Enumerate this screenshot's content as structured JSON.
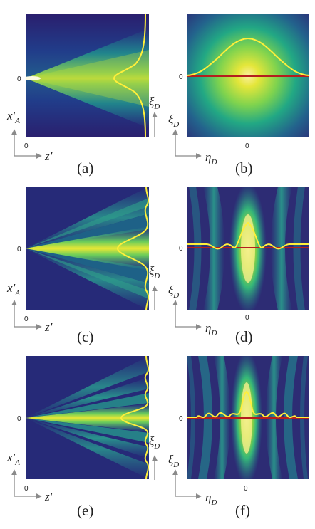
{
  "panels": [
    {
      "id": "a",
      "caption": "(a)",
      "kind": "propagation",
      "fringes": 1,
      "origin_tick": "0",
      "axis_tick": "0",
      "h_axis_label": "z",
      "h_axis_prime": "′",
      "v_axis_label": "x",
      "v_axis_sub": "A",
      "v_axis_prime": "′",
      "side_label": "ξ",
      "side_label_sub": "D"
    },
    {
      "id": "b",
      "caption": "(b)",
      "kind": "detector",
      "fringes": 1,
      "origin_tick": "0",
      "axis_tick": "0",
      "h_axis_label": "η",
      "h_axis_sub": "D",
      "v_axis_label": "ξ",
      "v_axis_sub": "D"
    },
    {
      "id": "c",
      "caption": "(c)",
      "kind": "propagation",
      "fringes": 2,
      "origin_tick": "0",
      "axis_tick": "0",
      "h_axis_label": "z",
      "h_axis_prime": "′",
      "v_axis_label": "x",
      "v_axis_sub": "A",
      "v_axis_prime": "′",
      "side_label": "ξ",
      "side_label_sub": "D"
    },
    {
      "id": "d",
      "caption": "(d)",
      "kind": "detector",
      "fringes": 2,
      "origin_tick": "0",
      "axis_tick": "0",
      "h_axis_label": "η",
      "h_axis_sub": "D",
      "v_axis_label": "ξ",
      "v_axis_sub": "D"
    },
    {
      "id": "e",
      "caption": "(e)",
      "kind": "propagation",
      "fringes": 3,
      "origin_tick": "0",
      "axis_tick": "0",
      "h_axis_label": "z",
      "h_axis_prime": "′",
      "v_axis_label": "x",
      "v_axis_sub": "A",
      "v_axis_prime": "′",
      "side_label": "ξ",
      "side_label_sub": "D"
    },
    {
      "id": "f",
      "caption": "(f)",
      "kind": "detector",
      "fringes": 3,
      "origin_tick": "0",
      "axis_tick": "0",
      "h_axis_label": "η",
      "h_axis_sub": "D",
      "v_axis_label": "ξ",
      "v_axis_sub": "D"
    }
  ],
  "colors": {
    "background": "#ffffff",
    "colormap": [
      "#300b62",
      "#203e8c",
      "#1e7a8e",
      "#25a885",
      "#6ccd5a",
      "#d8e33a",
      "#fbf4a0"
    ],
    "profile_curve": "#ffef3a",
    "reference_line": "#b41e1e",
    "axis_arrow": "#8a8a8a"
  }
}
